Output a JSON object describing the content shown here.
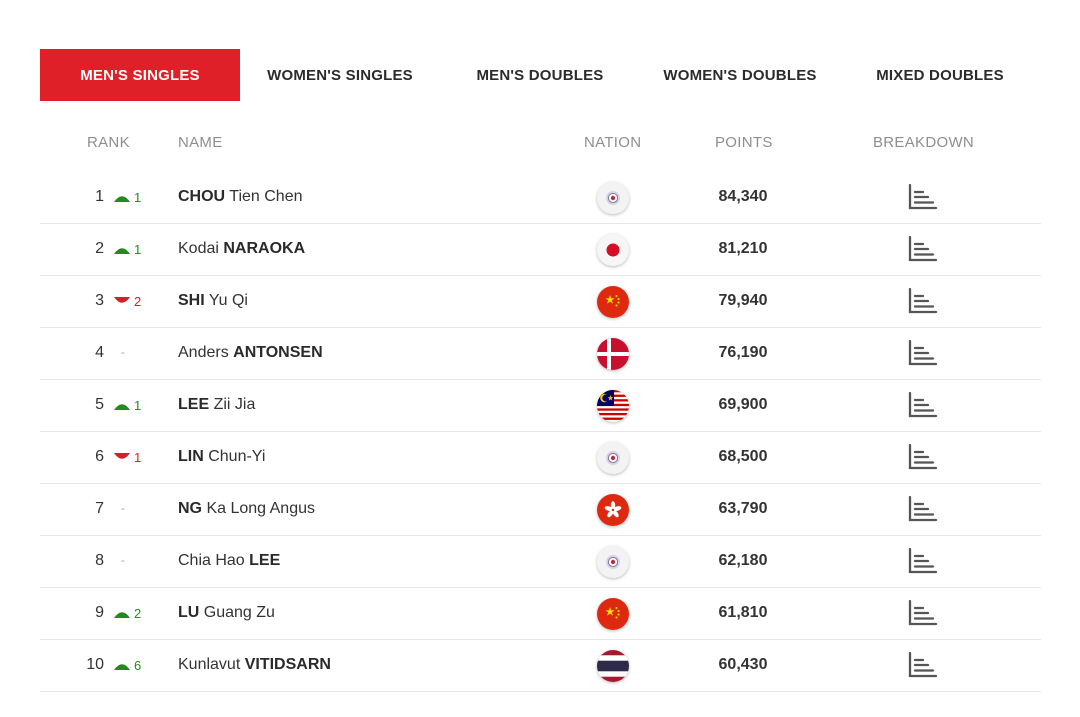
{
  "tabs": [
    {
      "label": "MEN'S SINGLES",
      "active": true
    },
    {
      "label": "WOMEN'S SINGLES",
      "active": false
    },
    {
      "label": "MEN'S DOUBLES",
      "active": false
    },
    {
      "label": "WOMEN'S DOUBLES",
      "active": false
    },
    {
      "label": "MIXED DOUBLES",
      "active": false
    }
  ],
  "columns": {
    "rank": "RANK",
    "name": "NAME",
    "nation": "NATION",
    "points": "POINTS",
    "breakdown": "BREAKDOWN"
  },
  "colors": {
    "accent": "#e02029",
    "up": "#1e8c1e",
    "down": "#d4202a"
  },
  "rows": [
    {
      "rank": "1",
      "change_dir": "up",
      "change": "1",
      "name_a": "CHOU",
      "name_b": " Tien Chen",
      "bold_first": true,
      "nation_icon": "tpe-flag-icon",
      "points": "84,340"
    },
    {
      "rank": "2",
      "change_dir": "up",
      "change": "1",
      "name_a": "Kodai ",
      "name_b": "NARAOKA",
      "bold_first": false,
      "nation_icon": "jpn-flag-icon",
      "points": "81,210"
    },
    {
      "rank": "3",
      "change_dir": "down",
      "change": "2",
      "name_a": "SHI",
      "name_b": " Yu Qi",
      "bold_first": true,
      "nation_icon": "chn-flag-icon",
      "points": "79,940"
    },
    {
      "rank": "4",
      "change_dir": "same",
      "change": "-",
      "name_a": "Anders ",
      "name_b": "ANTONSEN",
      "bold_first": false,
      "nation_icon": "den-flag-icon",
      "points": "76,190"
    },
    {
      "rank": "5",
      "change_dir": "up",
      "change": "1",
      "name_a": "LEE",
      "name_b": " Zii Jia",
      "bold_first": true,
      "nation_icon": "mas-flag-icon",
      "points": "69,900"
    },
    {
      "rank": "6",
      "change_dir": "down",
      "change": "1",
      "name_a": "LIN",
      "name_b": " Chun-Yi",
      "bold_first": true,
      "nation_icon": "tpe-flag-icon",
      "points": "68,500"
    },
    {
      "rank": "7",
      "change_dir": "same",
      "change": "-",
      "name_a": "NG",
      "name_b": " Ka Long Angus",
      "bold_first": true,
      "nation_icon": "hkg-flag-icon",
      "points": "63,790"
    },
    {
      "rank": "8",
      "change_dir": "same",
      "change": "-",
      "name_a": "Chia Hao ",
      "name_b": "LEE",
      "bold_first": false,
      "nation_icon": "tpe-flag-icon",
      "points": "62,180"
    },
    {
      "rank": "9",
      "change_dir": "up",
      "change": "2",
      "name_a": "LU",
      "name_b": " Guang Zu",
      "bold_first": true,
      "nation_icon": "chn-flag-icon",
      "points": "61,810"
    },
    {
      "rank": "10",
      "change_dir": "up",
      "change": "6",
      "name_a": "Kunlavut ",
      "name_b": "VITIDSARN",
      "bold_first": false,
      "nation_icon": "tha-flag-icon",
      "points": "60,430"
    }
  ]
}
